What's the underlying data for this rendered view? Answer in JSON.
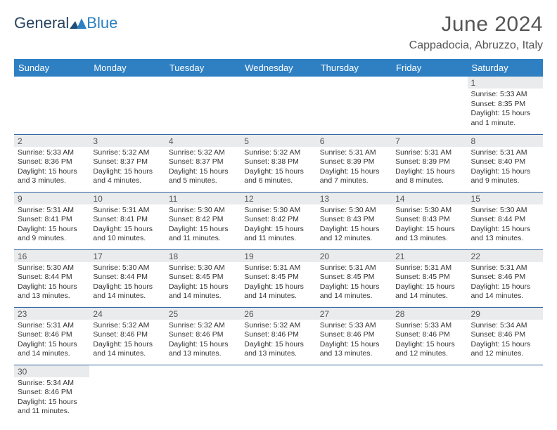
{
  "logo": {
    "text1": "General",
    "text2": "Blue"
  },
  "title": "June 2024",
  "subtitle": "Cappadocia, Abruzzo, Italy",
  "colors": {
    "header_bg": "#2f80c3",
    "header_text": "#ffffff",
    "daynum_bg": "#eaebec",
    "row_border": "#2f64a1",
    "text": "#333333",
    "title_text": "#555555"
  },
  "weekdays": [
    "Sunday",
    "Monday",
    "Tuesday",
    "Wednesday",
    "Thursday",
    "Friday",
    "Saturday"
  ],
  "weeks": [
    [
      null,
      null,
      null,
      null,
      null,
      null,
      {
        "n": "1",
        "sunrise": "Sunrise: 5:33 AM",
        "sunset": "Sunset: 8:35 PM",
        "daylight": "Daylight: 15 hours and 1 minute."
      }
    ],
    [
      {
        "n": "2",
        "sunrise": "Sunrise: 5:33 AM",
        "sunset": "Sunset: 8:36 PM",
        "daylight": "Daylight: 15 hours and 3 minutes."
      },
      {
        "n": "3",
        "sunrise": "Sunrise: 5:32 AM",
        "sunset": "Sunset: 8:37 PM",
        "daylight": "Daylight: 15 hours and 4 minutes."
      },
      {
        "n": "4",
        "sunrise": "Sunrise: 5:32 AM",
        "sunset": "Sunset: 8:37 PM",
        "daylight": "Daylight: 15 hours and 5 minutes."
      },
      {
        "n": "5",
        "sunrise": "Sunrise: 5:32 AM",
        "sunset": "Sunset: 8:38 PM",
        "daylight": "Daylight: 15 hours and 6 minutes."
      },
      {
        "n": "6",
        "sunrise": "Sunrise: 5:31 AM",
        "sunset": "Sunset: 8:39 PM",
        "daylight": "Daylight: 15 hours and 7 minutes."
      },
      {
        "n": "7",
        "sunrise": "Sunrise: 5:31 AM",
        "sunset": "Sunset: 8:39 PM",
        "daylight": "Daylight: 15 hours and 8 minutes."
      },
      {
        "n": "8",
        "sunrise": "Sunrise: 5:31 AM",
        "sunset": "Sunset: 8:40 PM",
        "daylight": "Daylight: 15 hours and 9 minutes."
      }
    ],
    [
      {
        "n": "9",
        "sunrise": "Sunrise: 5:31 AM",
        "sunset": "Sunset: 8:41 PM",
        "daylight": "Daylight: 15 hours and 9 minutes."
      },
      {
        "n": "10",
        "sunrise": "Sunrise: 5:31 AM",
        "sunset": "Sunset: 8:41 PM",
        "daylight": "Daylight: 15 hours and 10 minutes."
      },
      {
        "n": "11",
        "sunrise": "Sunrise: 5:30 AM",
        "sunset": "Sunset: 8:42 PM",
        "daylight": "Daylight: 15 hours and 11 minutes."
      },
      {
        "n": "12",
        "sunrise": "Sunrise: 5:30 AM",
        "sunset": "Sunset: 8:42 PM",
        "daylight": "Daylight: 15 hours and 11 minutes."
      },
      {
        "n": "13",
        "sunrise": "Sunrise: 5:30 AM",
        "sunset": "Sunset: 8:43 PM",
        "daylight": "Daylight: 15 hours and 12 minutes."
      },
      {
        "n": "14",
        "sunrise": "Sunrise: 5:30 AM",
        "sunset": "Sunset: 8:43 PM",
        "daylight": "Daylight: 15 hours and 13 minutes."
      },
      {
        "n": "15",
        "sunrise": "Sunrise: 5:30 AM",
        "sunset": "Sunset: 8:44 PM",
        "daylight": "Daylight: 15 hours and 13 minutes."
      }
    ],
    [
      {
        "n": "16",
        "sunrise": "Sunrise: 5:30 AM",
        "sunset": "Sunset: 8:44 PM",
        "daylight": "Daylight: 15 hours and 13 minutes."
      },
      {
        "n": "17",
        "sunrise": "Sunrise: 5:30 AM",
        "sunset": "Sunset: 8:44 PM",
        "daylight": "Daylight: 15 hours and 14 minutes."
      },
      {
        "n": "18",
        "sunrise": "Sunrise: 5:30 AM",
        "sunset": "Sunset: 8:45 PM",
        "daylight": "Daylight: 15 hours and 14 minutes."
      },
      {
        "n": "19",
        "sunrise": "Sunrise: 5:31 AM",
        "sunset": "Sunset: 8:45 PM",
        "daylight": "Daylight: 15 hours and 14 minutes."
      },
      {
        "n": "20",
        "sunrise": "Sunrise: 5:31 AM",
        "sunset": "Sunset: 8:45 PM",
        "daylight": "Daylight: 15 hours and 14 minutes."
      },
      {
        "n": "21",
        "sunrise": "Sunrise: 5:31 AM",
        "sunset": "Sunset: 8:45 PM",
        "daylight": "Daylight: 15 hours and 14 minutes."
      },
      {
        "n": "22",
        "sunrise": "Sunrise: 5:31 AM",
        "sunset": "Sunset: 8:46 PM",
        "daylight": "Daylight: 15 hours and 14 minutes."
      }
    ],
    [
      {
        "n": "23",
        "sunrise": "Sunrise: 5:31 AM",
        "sunset": "Sunset: 8:46 PM",
        "daylight": "Daylight: 15 hours and 14 minutes."
      },
      {
        "n": "24",
        "sunrise": "Sunrise: 5:32 AM",
        "sunset": "Sunset: 8:46 PM",
        "daylight": "Daylight: 15 hours and 14 minutes."
      },
      {
        "n": "25",
        "sunrise": "Sunrise: 5:32 AM",
        "sunset": "Sunset: 8:46 PM",
        "daylight": "Daylight: 15 hours and 13 minutes."
      },
      {
        "n": "26",
        "sunrise": "Sunrise: 5:32 AM",
        "sunset": "Sunset: 8:46 PM",
        "daylight": "Daylight: 15 hours and 13 minutes."
      },
      {
        "n": "27",
        "sunrise": "Sunrise: 5:33 AM",
        "sunset": "Sunset: 8:46 PM",
        "daylight": "Daylight: 15 hours and 13 minutes."
      },
      {
        "n": "28",
        "sunrise": "Sunrise: 5:33 AM",
        "sunset": "Sunset: 8:46 PM",
        "daylight": "Daylight: 15 hours and 12 minutes."
      },
      {
        "n": "29",
        "sunrise": "Sunrise: 5:34 AM",
        "sunset": "Sunset: 8:46 PM",
        "daylight": "Daylight: 15 hours and 12 minutes."
      }
    ],
    [
      {
        "n": "30",
        "sunrise": "Sunrise: 5:34 AM",
        "sunset": "Sunset: 8:46 PM",
        "daylight": "Daylight: 15 hours and 11 minutes."
      },
      null,
      null,
      null,
      null,
      null,
      null
    ]
  ]
}
